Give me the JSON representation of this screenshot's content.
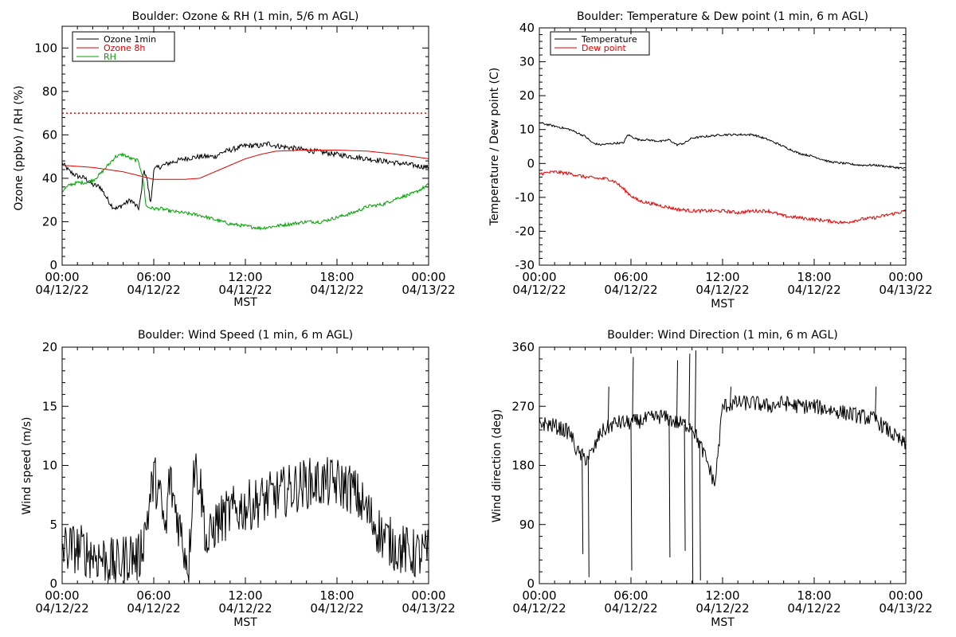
{
  "colors": {
    "black": "#000000",
    "red": "#e00000",
    "green": "#00a000"
  },
  "x_axis": {
    "label": "MST",
    "ticks": [
      {
        "time": "00:00",
        "date": "04/12/22"
      },
      {
        "time": "06:00",
        "date": "04/12/22"
      },
      {
        "time": "12:00",
        "date": "04/12/22"
      },
      {
        "time": "18:00",
        "date": "04/12/22"
      },
      {
        "time": "00:00",
        "date": "04/13/22"
      }
    ],
    "hour_ticks": [
      0,
      6,
      12,
      18,
      24
    ]
  },
  "chart_data": [
    {
      "id": "ozone",
      "type": "line",
      "title": "Boulder: Ozone & RH (1 min, 5/6 m AGL)",
      "xlabel": "MST",
      "ylabel": "Ozone (ppbv) / RH (%)",
      "ylim": [
        0,
        110
      ],
      "yticks": [
        0,
        20,
        40,
        60,
        80,
        100
      ],
      "threshold": 70,
      "series": [
        {
          "name": "Ozone 1min",
          "color": "black",
          "noise": 1.2,
          "x": [
            0,
            0.5,
            1,
            1.5,
            2,
            2.5,
            3,
            3.3,
            3.6,
            4,
            4.5,
            5,
            5.2,
            5.3,
            5.5,
            5.8,
            6,
            6.3,
            7,
            8,
            9,
            10,
            10.5,
            11,
            12,
            13,
            13.5,
            14,
            15,
            16,
            17,
            18,
            19,
            20,
            21,
            22,
            23,
            24
          ],
          "y": [
            47,
            43,
            41,
            40,
            37,
            36,
            30,
            27,
            26,
            28,
            30,
            26,
            33,
            43,
            42,
            28,
            44,
            45,
            47,
            49,
            50,
            50,
            52,
            53,
            55,
            55,
            56,
            55,
            54,
            53,
            52,
            51,
            50,
            49,
            48,
            47,
            46,
            45
          ]
        },
        {
          "name": "Ozone 8h",
          "color": "red",
          "noise": 0,
          "x": [
            0,
            2,
            4,
            6,
            8,
            9,
            10,
            11,
            12,
            13,
            14,
            16,
            18,
            20,
            22,
            24
          ],
          "y": [
            46,
            45,
            43,
            39.5,
            39.5,
            40,
            43,
            46,
            49,
            51,
            52.5,
            53,
            53,
            52.5,
            51,
            49
          ]
        },
        {
          "name": "RH",
          "color": "green",
          "noise": 0.8,
          "x": [
            0,
            0.5,
            1,
            1.5,
            2,
            2.5,
            3,
            3.5,
            4,
            4.5,
            5,
            5.3,
            5.5,
            6,
            6.5,
            7,
            8,
            9,
            10,
            11,
            12,
            13,
            14,
            15,
            16,
            17,
            18,
            19,
            20,
            21,
            22,
            23,
            24
          ],
          "y": [
            34,
            37,
            38,
            38,
            39,
            42,
            46,
            50,
            51,
            49,
            48,
            40,
            27,
            26,
            26,
            25,
            24,
            23,
            21,
            19,
            18,
            17,
            18,
            19,
            20,
            20,
            22,
            24,
            27,
            28,
            31,
            33,
            37
          ]
        }
      ]
    },
    {
      "id": "temp",
      "type": "line",
      "title": "Boulder: Temperature & Dew point (1 min, 6 m AGL)",
      "xlabel": "MST",
      "ylabel": "Temperature / Dew point (C)",
      "ylim": [
        -30,
        40
      ],
      "yticks": [
        -30,
        -20,
        -10,
        0,
        10,
        20,
        30,
        40
      ],
      "series": [
        {
          "name": "Temperature",
          "color": "black",
          "noise": 0.3,
          "x": [
            0,
            1,
            2,
            3,
            3.5,
            4,
            5,
            5.5,
            5.8,
            6,
            6.5,
            7,
            8,
            8.5,
            9,
            9.5,
            10,
            11,
            12,
            13,
            14,
            15,
            16,
            17,
            18,
            19,
            20,
            21,
            22,
            23,
            24
          ],
          "y": [
            12,
            11,
            10,
            8,
            6,
            5.5,
            6,
            6,
            8.5,
            8,
            7,
            7,
            6.5,
            7,
            5.5,
            6,
            7.5,
            8,
            8.5,
            8.5,
            8.5,
            7,
            5,
            3,
            2,
            0.5,
            0,
            -0.5,
            -0.5,
            -1,
            -1.5
          ]
        },
        {
          "name": "Dew point",
          "color": "red",
          "noise": 0.5,
          "x": [
            0,
            1,
            2,
            3,
            4,
            4.5,
            5,
            5.5,
            6,
            6.5,
            7,
            8,
            9,
            10,
            11,
            12,
            13,
            14,
            15,
            16,
            17,
            18,
            19,
            20,
            21,
            22,
            23,
            24
          ],
          "y": [
            -3,
            -2.5,
            -3,
            -4,
            -4.5,
            -4.5,
            -5.5,
            -7.5,
            -9.5,
            -11,
            -11.5,
            -12.5,
            -13.5,
            -14,
            -14,
            -14,
            -14.5,
            -14,
            -14,
            -15.5,
            -16,
            -16.5,
            -17,
            -17.5,
            -16.5,
            -16,
            -15,
            -14
          ]
        }
      ]
    },
    {
      "id": "wspd",
      "type": "line",
      "title": "Boulder: Wind Speed (1 min, 6 m AGL)",
      "xlabel": "MST",
      "ylabel": "Wind speed (m/s)",
      "ylim": [
        0,
        20
      ],
      "yticks": [
        0,
        5,
        10,
        15,
        20
      ],
      "series": [
        {
          "name": "",
          "color": "black",
          "noise": 2.2,
          "x": [
            0,
            1,
            2,
            3,
            3.5,
            4,
            4.5,
            5,
            5.5,
            6,
            6.3,
            6.8,
            7,
            7.5,
            8,
            8.3,
            8.6,
            9,
            9.5,
            10,
            11,
            12,
            13,
            14,
            15,
            16,
            17,
            18,
            19,
            20,
            21,
            22,
            23,
            24
          ],
          "y": [
            3,
            3,
            2.5,
            2,
            1.5,
            2,
            2.5,
            2,
            5,
            9,
            8,
            4,
            9,
            6,
            3,
            1.5,
            10,
            9,
            3,
            5,
            6,
            6.5,
            7,
            7.5,
            8,
            8.5,
            8.5,
            8.5,
            8,
            6,
            4,
            3,
            2.5,
            2.5
          ]
        }
      ]
    },
    {
      "id": "wdir",
      "type": "line",
      "title": "Boulder: Wind Direction (1 min, 6 m AGL)",
      "xlabel": "MST",
      "ylabel": "Wind direction (deg)",
      "ylim": [
        0,
        360
      ],
      "yticks": [
        0,
        90,
        180,
        270,
        360
      ],
      "spikes": [
        [
          2.8,
          45
        ],
        [
          3.2,
          10
        ],
        [
          4.5,
          300
        ],
        [
          6,
          20
        ],
        [
          6.1,
          345
        ],
        [
          8.5,
          40
        ],
        [
          9,
          340
        ],
        [
          9.5,
          50
        ],
        [
          9.8,
          350
        ],
        [
          10,
          0
        ],
        [
          10.2,
          355
        ],
        [
          10.5,
          5
        ],
        [
          12.5,
          300
        ],
        [
          22,
          300
        ]
      ],
      "series": [
        {
          "name": "",
          "color": "black",
          "noise": 12,
          "x": [
            0,
            1,
            2,
            2.5,
            3,
            3.5,
            4,
            5,
            6,
            7,
            8,
            9,
            10,
            11,
            11.5,
            12,
            13,
            14,
            15,
            16,
            17,
            18,
            19,
            20,
            21,
            22,
            23,
            24
          ],
          "y": [
            245,
            240,
            230,
            200,
            190,
            200,
            230,
            245,
            245,
            250,
            255,
            245,
            240,
            185,
            150,
            270,
            275,
            275,
            270,
            275,
            270,
            270,
            265,
            260,
            255,
            250,
            230,
            210
          ]
        }
      ]
    }
  ]
}
